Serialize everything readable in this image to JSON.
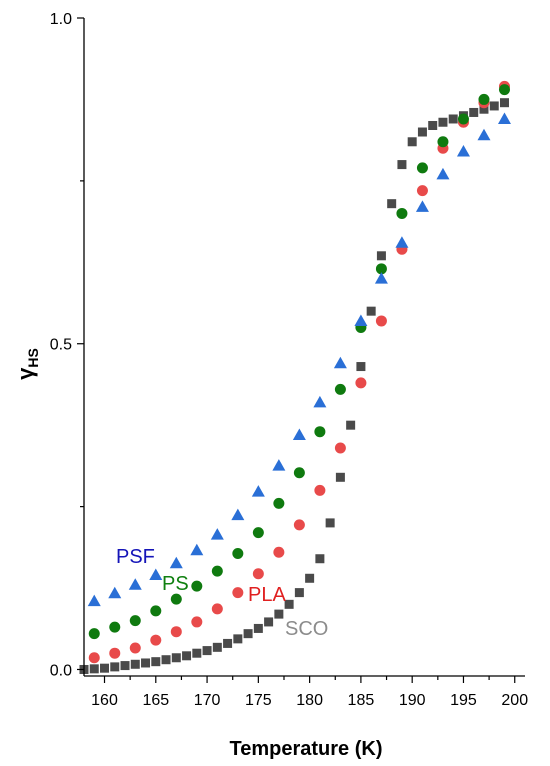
{
  "chart_data": {
    "type": "scatter",
    "xlabel": "Temperature (K)",
    "ylabel_main": "γ",
    "ylabel_sub": "HS",
    "xlim": [
      158,
      201
    ],
    "ylim": [
      -0.01,
      1.0
    ],
    "x_ticks": [
      160,
      165,
      170,
      175,
      180,
      185,
      190,
      195,
      200
    ],
    "x_tick_labels": [
      "160",
      "165",
      "170",
      "175",
      "180",
      "185",
      "190",
      "195",
      "200"
    ],
    "y_ticks": [
      0.0,
      0.5,
      1.0
    ],
    "y_tick_labels": [
      "0.0",
      "0.5",
      "1.0"
    ],
    "grid": false,
    "series": [
      {
        "name": "SCO",
        "marker": "square",
        "color": "#4a4a4a",
        "label_color": "#8c8c8c",
        "x": [
          158,
          159,
          160,
          161,
          162,
          163,
          164,
          165,
          166,
          167,
          168,
          169,
          170,
          171,
          172,
          173,
          174,
          175,
          176,
          177,
          178,
          179,
          180,
          181,
          182,
          183,
          184,
          185,
          186,
          187,
          188,
          189,
          190,
          191,
          192,
          193,
          194,
          195,
          196,
          197,
          198,
          199
        ],
        "y": [
          0.0,
          0.001,
          0.002,
          0.004,
          0.006,
          0.008,
          0.01,
          0.012,
          0.015,
          0.018,
          0.021,
          0.025,
          0.029,
          0.034,
          0.04,
          0.047,
          0.055,
          0.063,
          0.073,
          0.085,
          0.1,
          0.118,
          0.14,
          0.17,
          0.225,
          0.295,
          0.375,
          0.465,
          0.55,
          0.635,
          0.715,
          0.775,
          0.81,
          0.825,
          0.835,
          0.84,
          0.845,
          0.85,
          0.855,
          0.86,
          0.865,
          0.87
        ]
      },
      {
        "name": "PLA",
        "marker": "circle",
        "color": "#e84a4a",
        "label_color": "#e02020",
        "x": [
          159,
          161,
          163,
          165,
          167,
          169,
          171,
          173,
          175,
          177,
          179,
          181,
          183,
          185,
          187,
          189,
          191,
          193,
          195,
          197,
          199
        ],
        "y": [
          0.018,
          0.025,
          0.033,
          0.045,
          0.058,
          0.073,
          0.093,
          0.118,
          0.147,
          0.18,
          0.222,
          0.275,
          0.34,
          0.44,
          0.535,
          0.645,
          0.735,
          0.8,
          0.84,
          0.87,
          0.895
        ]
      },
      {
        "name": "PS",
        "marker": "circle",
        "color": "#0f7a0f",
        "label_color": "#108010",
        "x": [
          159,
          161,
          163,
          165,
          167,
          169,
          171,
          173,
          175,
          177,
          179,
          181,
          183,
          185,
          187,
          189,
          191,
          193,
          195,
          197,
          199
        ],
        "y": [
          0.055,
          0.065,
          0.075,
          0.09,
          0.108,
          0.128,
          0.151,
          0.178,
          0.21,
          0.255,
          0.302,
          0.365,
          0.43,
          0.525,
          0.615,
          0.7,
          0.77,
          0.81,
          0.845,
          0.875,
          0.89
        ]
      },
      {
        "name": "PSF",
        "marker": "triangle",
        "color": "#2a6fd6",
        "label_color": "#1515b8",
        "x": [
          159,
          161,
          163,
          165,
          167,
          169,
          171,
          173,
          175,
          177,
          179,
          181,
          183,
          185,
          187,
          189,
          191,
          193,
          195,
          197,
          199
        ],
        "y": [
          0.105,
          0.117,
          0.13,
          0.145,
          0.163,
          0.183,
          0.207,
          0.237,
          0.273,
          0.313,
          0.36,
          0.41,
          0.47,
          0.535,
          0.6,
          0.655,
          0.71,
          0.76,
          0.795,
          0.82,
          0.845
        ]
      }
    ]
  }
}
